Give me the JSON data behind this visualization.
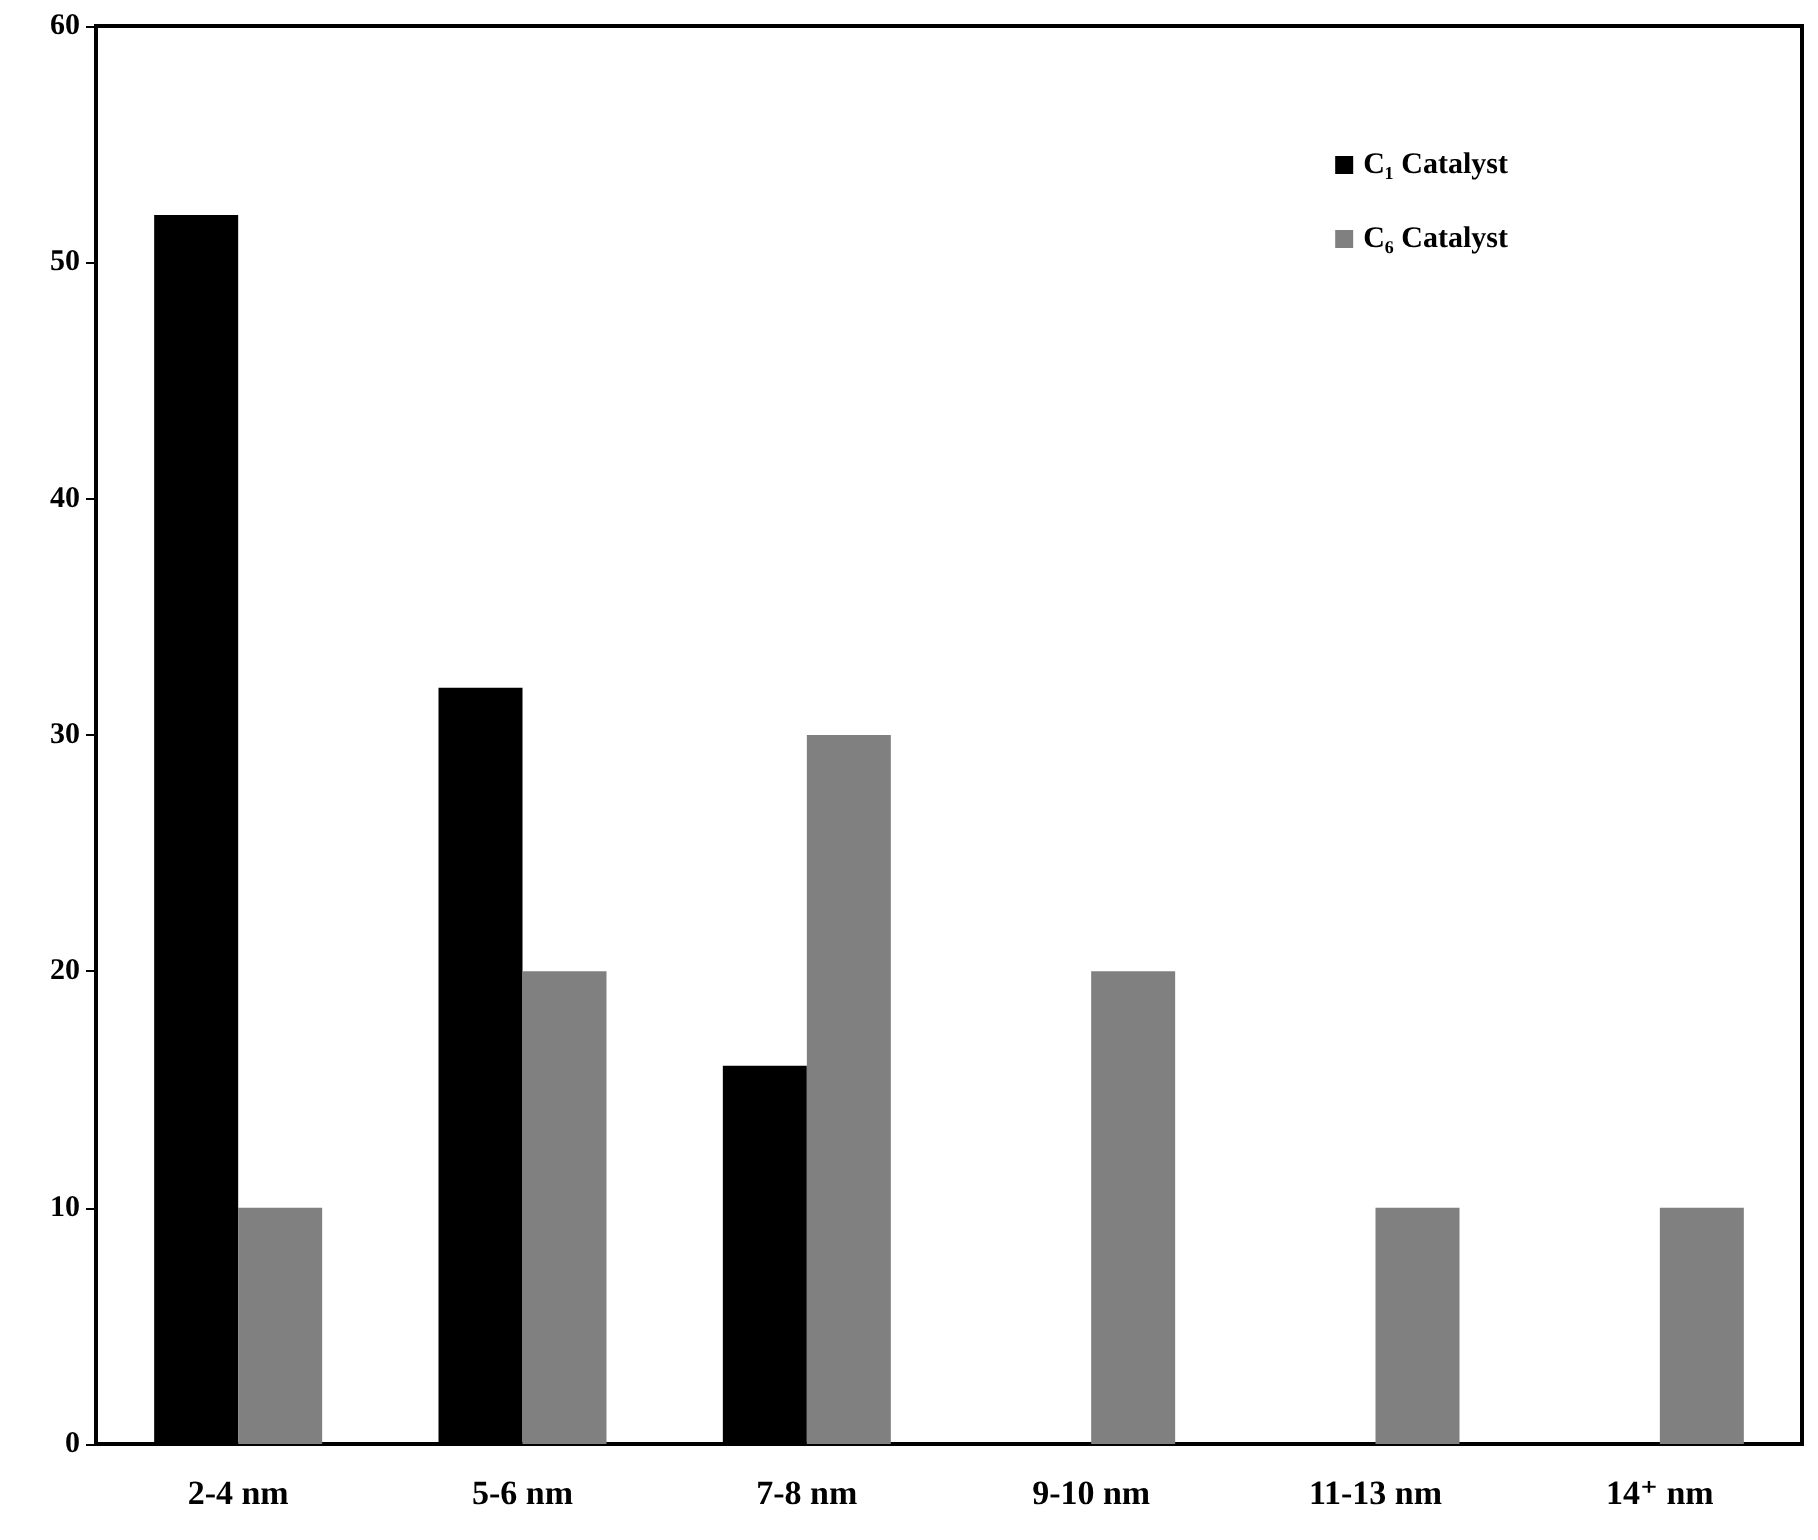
{
  "chart_data": {
    "type": "bar",
    "categories": [
      "2-4 nm",
      "5-6 nm",
      "7-8 nm",
      "9-10 nm",
      "11-13 nm",
      "14⁺ nm"
    ],
    "series": [
      {
        "name": "C₁ Catalyst",
        "color": "#000000",
        "values": [
          52,
          32,
          16,
          null,
          null,
          null
        ]
      },
      {
        "name": "C₆ Catalyst",
        "color": "#808080",
        "values": [
          10,
          20,
          30,
          20,
          10,
          10
        ]
      }
    ],
    "ylim": [
      0,
      60
    ],
    "yticks": [
      0,
      10,
      20,
      30,
      40,
      50,
      60
    ],
    "legend": "top right"
  }
}
